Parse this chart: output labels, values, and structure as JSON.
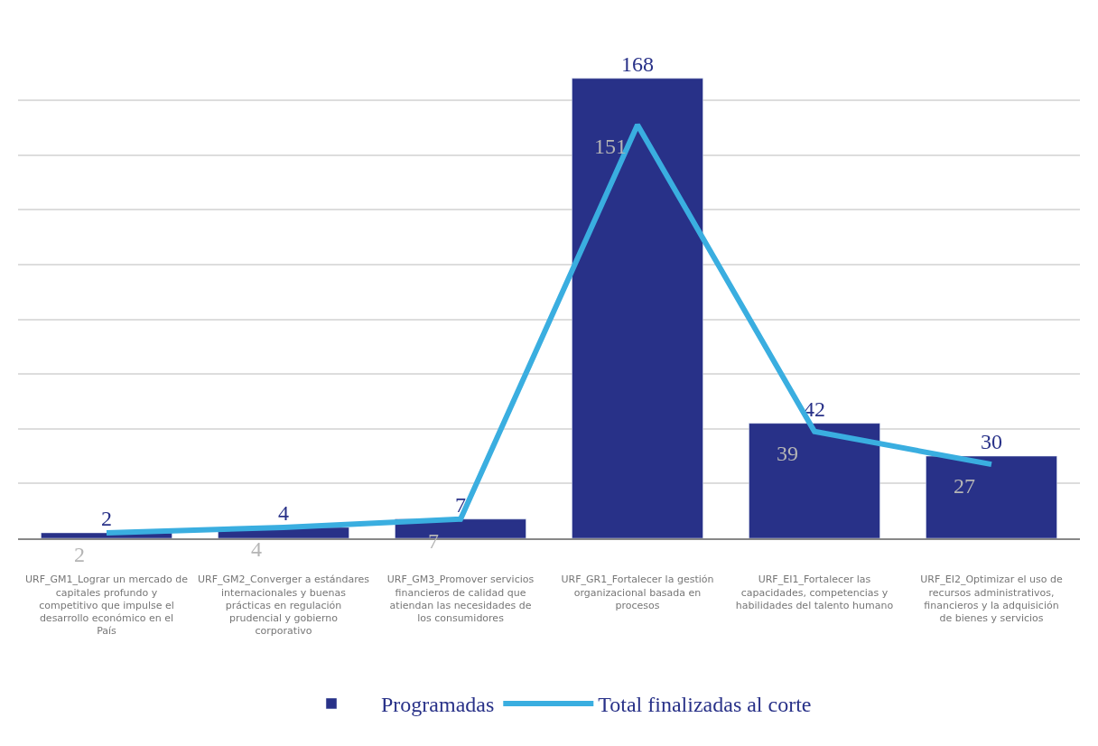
{
  "chart_data": {
    "type": "bar",
    "categories": [
      "URF_GM1_Lograr un mercado de capitales profundo y competitivo que impulse el desarrollo económico en el País",
      "URF_GM2_Converger a estándares internacionales y buenas prácticas en regulación prudencial y gobierno corporativo",
      "URF_GM3_Promover servicios financieros de calidad que atiendan las necesidades de los consumidores",
      "URF_GR1_Fortalecer la gestión organizacional basada en procesos",
      "URF_EI1_Fortalecer las capacidades, competencias y habilidades del talento humano",
      "URF_EI2_Optimizar el uso de recursos administrativos, financieros y la adquisición de bienes y servicios"
    ],
    "series": [
      {
        "name": "Programadas",
        "color": "#283188",
        "values": [
          2,
          4,
          7,
          168,
          42,
          30
        ]
      },
      {
        "name": "Total finalizadas al corte",
        "type": "line",
        "color": "#3aaee0",
        "values": [
          2,
          4,
          7,
          151,
          39,
          27
        ]
      }
    ],
    "grid": "y",
    "legend": "bottom",
    "data_labels": true,
    "marker": "none",
    "tick_labels": "x"
  }
}
